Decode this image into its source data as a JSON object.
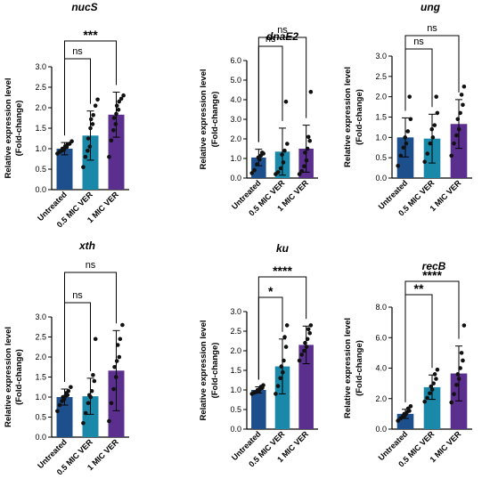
{
  "colors": {
    "untreated": "#1d4f8c",
    "mic05": "#1a88a8",
    "mic1": "#5b2f8e",
    "errorbar": "#000000",
    "point": "#111111"
  },
  "chart_data": [
    {
      "type": "bar",
      "title": "nucS",
      "ylabel": [
        "Relative expression level",
        "(Fold-change)"
      ],
      "categories": [
        "Untreated",
        "0.5 MIC VER",
        "1 MIC VER"
      ],
      "values": [
        1.0,
        1.32,
        1.83
      ],
      "errors": [
        0.15,
        0.6,
        0.55
      ],
      "points": [
        [
          0.88,
          0.92,
          0.95,
          0.97,
          1.0,
          1.02,
          1.04,
          1.06,
          1.1,
          1.12,
          1.18
        ],
        [
          0.55,
          0.8,
          0.95,
          1.05,
          1.25,
          1.5,
          1.6,
          1.72,
          1.82,
          2.05,
          2.2
        ],
        [
          0.8,
          1.2,
          1.45,
          1.6,
          1.75,
          1.85,
          1.95,
          2.05,
          2.15,
          2.22,
          2.3
        ]
      ],
      "ylim": [
        0,
        3.0
      ],
      "yticks": [
        0.0,
        0.5,
        1.0,
        1.5,
        2.0,
        2.5,
        3.0
      ],
      "brackets": [
        {
          "from": 0,
          "to": 1,
          "label": "ns"
        },
        {
          "from": 0,
          "to": 2,
          "label": "***"
        }
      ]
    },
    {
      "type": "bar",
      "title": "dnaE2",
      "ylabel": [
        "Relative expression level",
        "(Fold-change)"
      ],
      "categories": [
        "Untreated",
        "0.5 MIC VER",
        "1 MIC VER"
      ],
      "values": [
        1.05,
        1.35,
        1.5
      ],
      "errors": [
        0.42,
        1.2,
        1.2
      ],
      "points": [
        [
          0.25,
          0.4,
          0.7,
          0.95,
          1.05,
          1.15,
          1.25,
          1.3
        ],
        [
          0.2,
          0.3,
          0.5,
          0.8,
          1.2,
          1.4,
          1.75,
          3.9
        ],
        [
          0.2,
          0.35,
          0.6,
          0.9,
          1.3,
          1.5,
          1.9,
          2.1,
          4.4
        ]
      ],
      "ylim": [
        0,
        6.0
      ],
      "yticks": [
        0.0,
        1.0,
        2.0,
        3.0,
        4.0,
        5.0,
        6.0
      ],
      "brackets": [
        {
          "from": 0,
          "to": 1,
          "label": "ns"
        },
        {
          "from": 0,
          "to": 2,
          "label": "ns"
        }
      ]
    },
    {
      "type": "bar",
      "title": "ung",
      "ylabel": [
        "Relative expression level",
        "(Fold-change)"
      ],
      "categories": [
        "Untreated",
        "0.5 MIC VER",
        "1 MIC VER"
      ],
      "values": [
        1.0,
        0.97,
        1.33
      ],
      "errors": [
        0.48,
        0.6,
        0.6
      ],
      "points": [
        [
          0.3,
          0.55,
          0.75,
          0.85,
          1.0,
          1.15,
          1.45,
          2.0
        ],
        [
          0.4,
          0.6,
          0.85,
          1.0,
          1.2,
          1.3,
          1.6,
          2.0
        ],
        [
          0.55,
          0.85,
          1.05,
          1.2,
          1.45,
          1.6,
          1.8,
          2.05,
          2.25
        ]
      ],
      "ylim": [
        0,
        3.0
      ],
      "yticks": [
        0.0,
        0.5,
        1.0,
        1.5,
        2.0,
        2.5,
        3.0
      ],
      "brackets": [
        {
          "from": 0,
          "to": 1,
          "label": "ns"
        },
        {
          "from": 0,
          "to": 2,
          "label": "ns"
        }
      ]
    },
    {
      "type": "bar",
      "title": "xth",
      "ylabel": [
        "Relative expression level",
        "(Fold-change)"
      ],
      "categories": [
        "Untreated",
        "0.5 MIC VER",
        "1 MIC VER"
      ],
      "values": [
        1.0,
        1.02,
        1.66
      ],
      "errors": [
        0.2,
        0.45,
        1.0
      ],
      "points": [
        [
          0.65,
          0.8,
          0.9,
          0.95,
          1.0,
          1.02,
          1.05,
          1.1,
          1.15,
          1.25
        ],
        [
          0.35,
          0.6,
          0.85,
          1.0,
          1.05,
          1.15,
          1.4,
          1.55,
          2.45
        ],
        [
          0.4,
          0.85,
          1.2,
          1.5,
          1.75,
          1.9,
          2.0,
          2.3,
          2.45,
          2.8
        ]
      ],
      "ylim": [
        0,
        3.0
      ],
      "yticks": [
        0.0,
        0.5,
        1.0,
        1.5,
        2.0,
        2.5,
        3.0
      ],
      "brackets": [
        {
          "from": 0,
          "to": 1,
          "label": "ns"
        },
        {
          "from": 0,
          "to": 2,
          "label": "ns"
        }
      ]
    },
    {
      "type": "bar",
      "title": "ku",
      "ylabel": [
        "Relative expression level",
        "(Fold-change)"
      ],
      "categories": [
        "Untreated",
        "0.5 MIC VER",
        "1 MIC VER"
      ],
      "values": [
        1.0,
        1.6,
        2.15
      ],
      "errors": [
        0.08,
        0.7,
        0.48
      ],
      "points": [
        [
          0.9,
          0.93,
          0.95,
          0.97,
          1.0,
          1.02,
          1.05,
          1.08,
          1.12
        ],
        [
          0.9,
          1.1,
          1.3,
          1.45,
          1.6,
          1.75,
          2.1,
          2.35,
          2.65
        ],
        [
          1.75,
          1.9,
          2.0,
          2.1,
          2.2,
          2.3,
          2.45,
          2.55,
          2.65
        ]
      ],
      "ylim": [
        0,
        3.0
      ],
      "yticks": [
        0.0,
        0.5,
        1.0,
        1.5,
        2.0,
        2.5,
        3.0
      ],
      "brackets": [
        {
          "from": 0,
          "to": 1,
          "label": "*"
        },
        {
          "from": 0,
          "to": 2,
          "label": "****"
        }
      ]
    },
    {
      "type": "bar",
      "title": "recB",
      "ylabel": [
        "Relative expression level",
        "(Fold-change)"
      ],
      "categories": [
        "Untreated",
        "0.5 MIC VER",
        "1 MIC VER"
      ],
      "values": [
        1.0,
        2.75,
        3.65
      ],
      "errors": [
        0.3,
        0.8,
        1.8
      ],
      "points": [
        [
          0.55,
          0.7,
          0.85,
          0.95,
          1.0,
          1.1,
          1.2,
          1.35,
          1.5
        ],
        [
          1.8,
          2.05,
          2.35,
          2.6,
          2.8,
          3.0,
          3.3,
          3.6,
          3.9
        ],
        [
          1.75,
          2.3,
          2.9,
          3.3,
          3.6,
          4.0,
          4.5,
          5.0,
          6.8
        ]
      ],
      "ylim": [
        0,
        8
      ],
      "yticks": [
        0,
        2,
        4,
        6,
        8
      ],
      "brackets": [
        {
          "from": 0,
          "to": 1,
          "label": "**"
        },
        {
          "from": 0,
          "to": 2,
          "label": "****"
        }
      ]
    }
  ]
}
